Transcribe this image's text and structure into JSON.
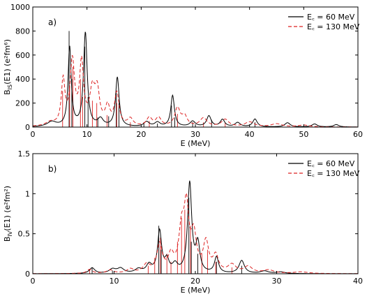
{
  "chart_data": [
    {
      "type": "line",
      "panel_label": "a)",
      "xlabel": "E (MeV)",
      "ylabel_main": "B",
      "ylabel_sub": "IS",
      "ylabel_rest": "(E1) (e²fm⁶)",
      "xlim": [
        0,
        60
      ],
      "ylim": [
        0,
        1000
      ],
      "xticks": [
        0,
        10,
        20,
        30,
        40,
        50,
        60
      ],
      "yticks": [
        0,
        200,
        400,
        600,
        800,
        1000
      ],
      "legend_position": "top-right",
      "series": [
        {
          "name": "E꜀ = 60 MeV",
          "color": "#000000",
          "dash": "solid",
          "peaks": [
            [
              3.5,
              40,
              1.0
            ],
            [
              6.8,
              660,
              0.35
            ],
            [
              9.7,
              780,
              0.4
            ],
            [
              12.5,
              60,
              0.6
            ],
            [
              15.6,
              410,
              0.4
            ],
            [
              21.0,
              40,
              0.6
            ],
            [
              23.0,
              35,
              0.6
            ],
            [
              25.8,
              260,
              0.4
            ],
            [
              29.5,
              45,
              0.6
            ],
            [
              32.5,
              90,
              0.5
            ],
            [
              35.0,
              60,
              0.5
            ],
            [
              37.8,
              35,
              0.6
            ],
            [
              41.0,
              65,
              0.5
            ],
            [
              47.0,
              35,
              0.6
            ],
            [
              52.0,
              25,
              0.6
            ],
            [
              56.0,
              20,
              0.6
            ]
          ],
          "sticks": [
            [
              6.7,
              800
            ],
            [
              7.2,
              400
            ],
            [
              9.6,
              670
            ],
            [
              10.2,
              250
            ],
            [
              12.0,
              80
            ],
            [
              14.0,
              90
            ],
            [
              15.4,
              300
            ],
            [
              15.9,
              200
            ],
            [
              20.5,
              40
            ],
            [
              23.0,
              30
            ],
            [
              25.6,
              180
            ],
            [
              26.2,
              80
            ],
            [
              29.5,
              40
            ],
            [
              33.0,
              60
            ],
            [
              41.0,
              40
            ]
          ]
        },
        {
          "name": "E꜀ = 130 MeV",
          "color": "#dd2222",
          "dash": "5,3",
          "peaks": [
            [
              3.2,
              30,
              1.0
            ],
            [
              5.6,
              370,
              0.4
            ],
            [
              7.3,
              530,
              0.5
            ],
            [
              9.0,
              510,
              0.45
            ],
            [
              11.0,
              280,
              0.6
            ],
            [
              11.9,
              260,
              0.5
            ],
            [
              13.8,
              150,
              0.5
            ],
            [
              15.5,
              270,
              0.5
            ],
            [
              18.0,
              60,
              0.6
            ],
            [
              21.5,
              70,
              0.6
            ],
            [
              23.2,
              70,
              0.6
            ],
            [
              26.7,
              150,
              0.6
            ],
            [
              28.0,
              80,
              0.6
            ],
            [
              31.5,
              70,
              0.8
            ],
            [
              35.5,
              60,
              0.8
            ],
            [
              40.0,
              40,
              1.0
            ],
            [
              45.0,
              25,
              1.2
            ],
            [
              50.0,
              15,
              1.2
            ]
          ],
          "sticks": [
            [
              5.5,
              300
            ],
            [
              6.8,
              350
            ],
            [
              7.4,
              500
            ],
            [
              8.8,
              400
            ],
            [
              9.2,
              250
            ],
            [
              11.0,
              220
            ],
            [
              11.8,
              200
            ],
            [
              13.7,
              100
            ],
            [
              15.5,
              200
            ],
            [
              18.0,
              40
            ],
            [
              21.5,
              50
            ],
            [
              26.7,
              110
            ],
            [
              31.5,
              40
            ],
            [
              35.5,
              35
            ]
          ]
        }
      ]
    },
    {
      "type": "line",
      "panel_label": "b)",
      "xlabel": "E (MeV)",
      "ylabel_main": "B",
      "ylabel_sub": "IV",
      "ylabel_rest": "(E1) (e²fm²)",
      "xlim": [
        0,
        40
      ],
      "ylim": [
        0,
        1.5
      ],
      "xticks": [
        0,
        10,
        20,
        30,
        40
      ],
      "yticks": [
        0,
        0.5,
        1,
        1.5
      ],
      "ytick_labels": [
        "0",
        "0.5",
        "1",
        "1.5"
      ],
      "legend_position": "top-right",
      "series": [
        {
          "name": "E꜀ = 60 MeV",
          "color": "#000000",
          "dash": "solid",
          "peaks": [
            [
              7.3,
              0.07,
              0.4
            ],
            [
              9.8,
              0.05,
              0.5
            ],
            [
              10.8,
              0.06,
              0.5
            ],
            [
              13.0,
              0.05,
              0.5
            ],
            [
              14.3,
              0.1,
              0.4
            ],
            [
              15.6,
              0.52,
              0.3
            ],
            [
              16.5,
              0.15,
              0.3
            ],
            [
              17.5,
              0.1,
              0.4
            ],
            [
              19.3,
              1.12,
              0.3
            ],
            [
              20.3,
              0.35,
              0.3
            ],
            [
              22.6,
              0.2,
              0.3
            ],
            [
              25.7,
              0.16,
              0.4
            ],
            [
              28.5,
              0.03,
              0.6
            ],
            [
              30.5,
              0.02,
              0.6
            ]
          ],
          "sticks": [
            [
              7.3,
              0.08
            ],
            [
              9.8,
              0.04
            ],
            [
              15.5,
              0.6
            ],
            [
              15.8,
              0.3
            ],
            [
              19.2,
              0.95
            ],
            [
              19.5,
              0.4
            ],
            [
              20.3,
              0.25
            ],
            [
              22.6,
              0.15
            ],
            [
              25.7,
              0.1
            ]
          ]
        },
        {
          "name": "E꜀ = 130 MeV",
          "color": "#dd2222",
          "dash": "5,3",
          "peaks": [
            [
              7.0,
              0.05,
              0.4
            ],
            [
              9.5,
              0.04,
              0.5
            ],
            [
              12.0,
              0.05,
              0.5
            ],
            [
              14.0,
              0.1,
              0.5
            ],
            [
              15.6,
              0.35,
              0.4
            ],
            [
              17.0,
              0.2,
              0.4
            ],
            [
              18.3,
              0.5,
              0.4
            ],
            [
              18.9,
              0.75,
              0.35
            ],
            [
              19.8,
              0.45,
              0.4
            ],
            [
              21.3,
              0.37,
              0.4
            ],
            [
              22.5,
              0.2,
              0.4
            ],
            [
              24.5,
              0.1,
              0.6
            ],
            [
              26.5,
              0.08,
              0.6
            ],
            [
              29.0,
              0.04,
              0.8
            ],
            [
              33.0,
              0.02,
              1.0
            ]
          ],
          "sticks": [
            [
              7.0,
              0.06
            ],
            [
              14.2,
              0.1
            ],
            [
              15.0,
              0.2
            ],
            [
              15.7,
              0.45
            ],
            [
              16.5,
              0.25
            ],
            [
              17.0,
              0.15
            ],
            [
              17.8,
              0.4
            ],
            [
              18.3,
              0.7
            ],
            [
              18.7,
              0.8
            ],
            [
              19.4,
              0.6
            ],
            [
              20.8,
              0.25
            ],
            [
              21.5,
              0.3
            ],
            [
              22.5,
              0.15
            ],
            [
              24.5,
              0.08
            ]
          ]
        }
      ]
    }
  ]
}
